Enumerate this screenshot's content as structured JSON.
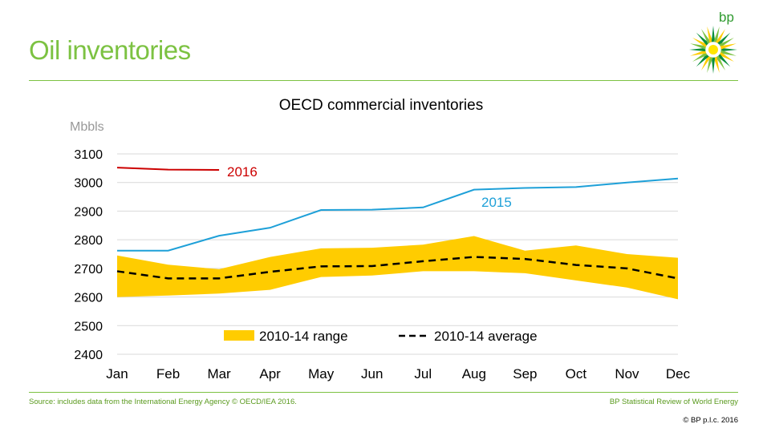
{
  "header": {
    "title": "Oil inventories",
    "logo_text": "bp"
  },
  "chart_data": {
    "type": "line",
    "title": "OECD commercial inventories",
    "ylabel": "Mbbls",
    "xlabel": "",
    "categories": [
      "Jan",
      "Feb",
      "Mar",
      "Apr",
      "May",
      "Jun",
      "Jul",
      "Aug",
      "Sep",
      "Oct",
      "Nov",
      "Dec"
    ],
    "ylim": [
      2400,
      3100
    ],
    "yticks": [
      2400,
      2500,
      2600,
      2700,
      2800,
      2900,
      3000,
      3100
    ],
    "grid": true,
    "range": {
      "name": "2010-14 range",
      "low": [
        2600,
        2605,
        2612,
        2625,
        2670,
        2675,
        2690,
        2690,
        2683,
        2658,
        2633,
        2592
      ],
      "high": [
        2745,
        2713,
        2697,
        2740,
        2770,
        2772,
        2783,
        2813,
        2762,
        2780,
        2750,
        2737
      ],
      "color": "#ffcc00"
    },
    "series": [
      {
        "name": "2016",
        "values": [
          3052,
          3045,
          3044,
          null,
          null,
          null,
          null,
          null,
          null,
          null,
          null,
          null
        ],
        "color": "#cc0000",
        "style": "solid"
      },
      {
        "name": "2015",
        "values": [
          2762,
          2762,
          2814,
          2842,
          2904,
          2905,
          2913,
          2975,
          2981,
          2984,
          3000,
          3014
        ],
        "color": "#1ea0d8",
        "style": "solid"
      },
      {
        "name": "2010-14 average",
        "values": [
          2690,
          2665,
          2665,
          2688,
          2707,
          2708,
          2725,
          2740,
          2733,
          2712,
          2700,
          2665
        ],
        "color": "#000000",
        "style": "dashed"
      }
    ],
    "labels": {
      "s2016": "2016",
      "s2015": "2015"
    },
    "legend": {
      "placement": "bottom",
      "range_label": "2010-14 range",
      "average_label": "2010-14 average"
    }
  },
  "footer": {
    "source": "Source: includes data from the International Energy Agency © OECD/IEA 2016.",
    "review": "BP Statistical Review of World Energy",
    "copyright": "© BP p.l.c. 2016"
  }
}
